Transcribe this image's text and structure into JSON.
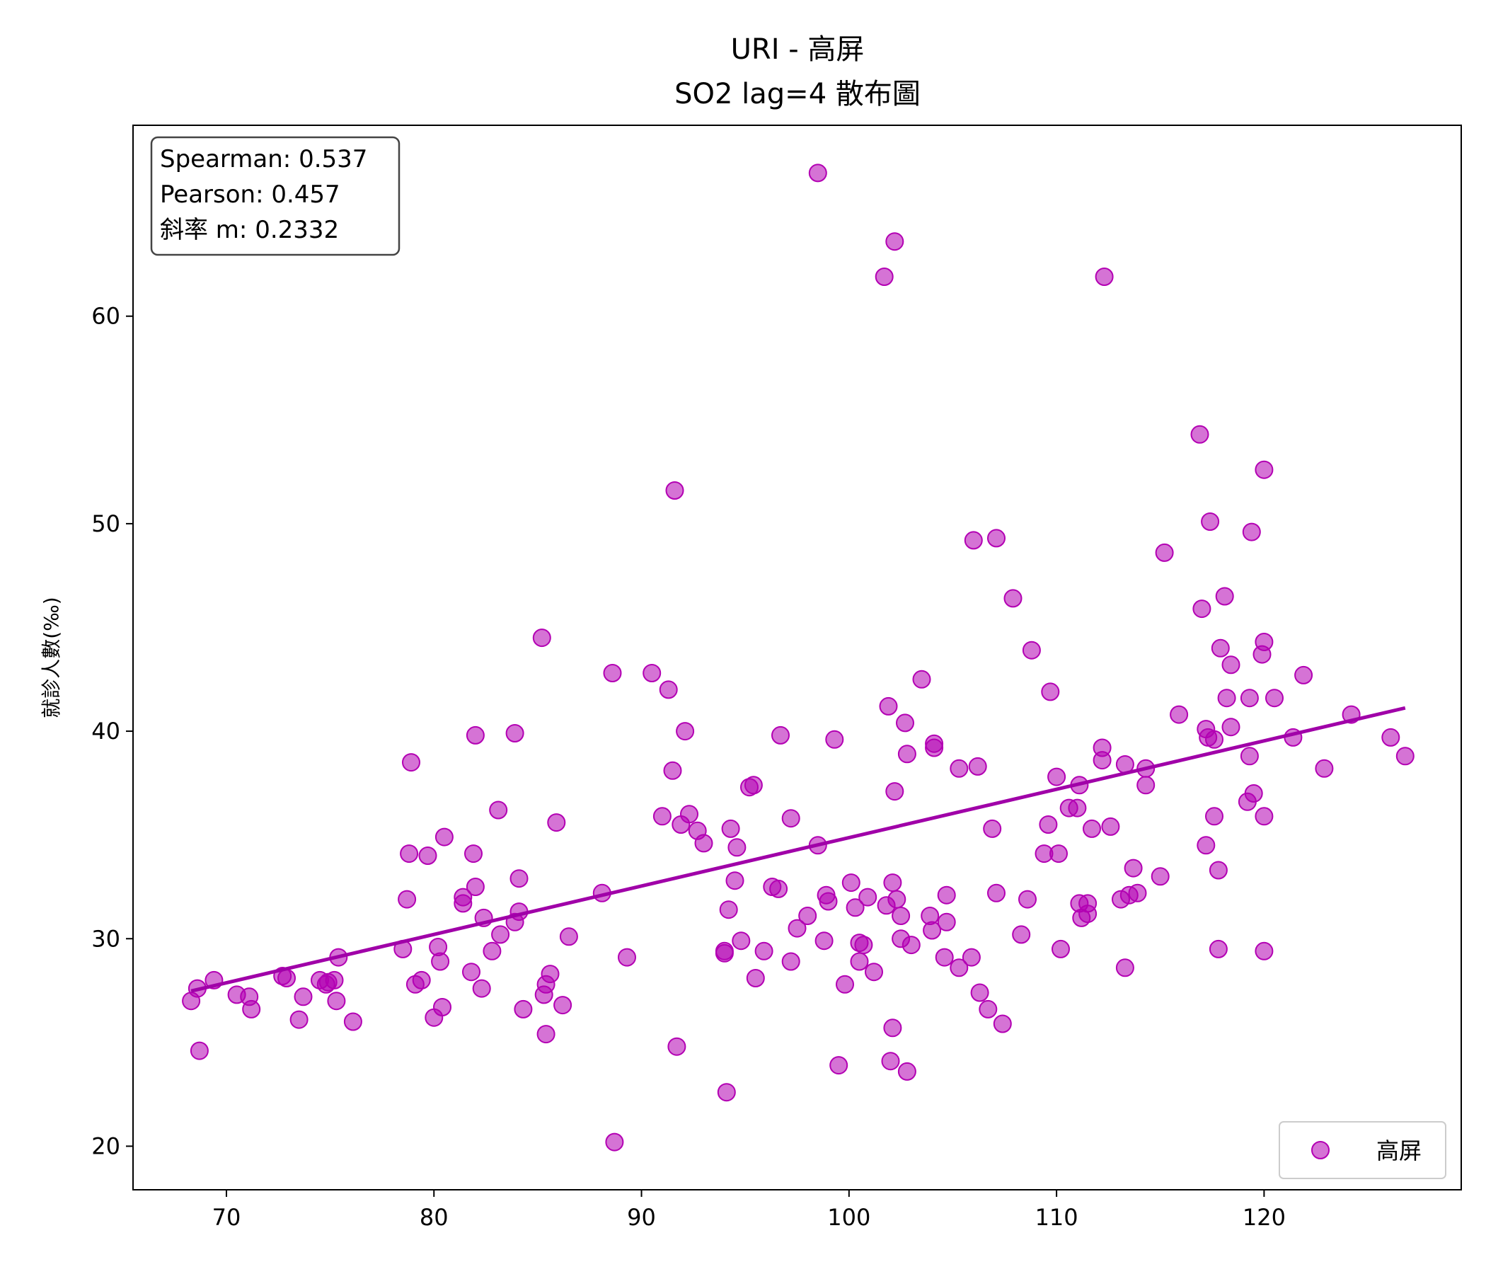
{
  "chart_data": {
    "type": "scatter",
    "title_lines": [
      "URI - 高屏",
      "SO2 lag=4 散布圖"
    ],
    "xlabel": "",
    "ylabel": "就診人數(‰)",
    "xlim": [
      65.5,
      129.5
    ],
    "ylim": [
      17.9,
      69.2
    ],
    "xticks": [
      70,
      80,
      90,
      100,
      110,
      120
    ],
    "yticks": [
      20,
      30,
      40,
      50,
      60
    ],
    "grid": false,
    "legend": {
      "position": "bottom-right",
      "entries": [
        "高屏"
      ]
    },
    "stats": [
      "Spearman: 0.537",
      "Pearson: 0.457",
      "斜率 m: 0.2332"
    ],
    "point_color": "#b300b3",
    "line_color": "#a000a8",
    "series": [
      {
        "name": "高屏",
        "points": [
          [
            68.3,
            27.0
          ],
          [
            68.6,
            27.6
          ],
          [
            68.7,
            24.6
          ],
          [
            69.4,
            28.0
          ],
          [
            70.5,
            27.3
          ],
          [
            71.1,
            27.2
          ],
          [
            71.2,
            26.6
          ],
          [
            72.7,
            28.2
          ],
          [
            72.9,
            28.1
          ],
          [
            73.5,
            26.1
          ],
          [
            73.7,
            27.2
          ],
          [
            74.5,
            28.0
          ],
          [
            74.8,
            27.8
          ],
          [
            74.9,
            27.9
          ],
          [
            75.2,
            28.0
          ],
          [
            75.3,
            27.0
          ],
          [
            75.4,
            29.1
          ],
          [
            76.1,
            26.0
          ],
          [
            78.5,
            29.5
          ],
          [
            78.7,
            31.9
          ],
          [
            78.8,
            34.1
          ],
          [
            78.9,
            38.5
          ],
          [
            79.1,
            27.8
          ],
          [
            79.4,
            28.0
          ],
          [
            79.7,
            34.0
          ],
          [
            80.0,
            26.2
          ],
          [
            80.2,
            29.6
          ],
          [
            80.3,
            28.9
          ],
          [
            80.4,
            26.7
          ],
          [
            80.5,
            34.9
          ],
          [
            81.4,
            31.7
          ],
          [
            81.4,
            32.0
          ],
          [
            81.8,
            28.4
          ],
          [
            81.9,
            34.1
          ],
          [
            82.0,
            32.5
          ],
          [
            82.0,
            39.8
          ],
          [
            82.3,
            27.6
          ],
          [
            82.4,
            31.0
          ],
          [
            82.8,
            29.4
          ],
          [
            83.1,
            36.2
          ],
          [
            83.2,
            30.2
          ],
          [
            83.9,
            39.9
          ],
          [
            83.9,
            30.8
          ],
          [
            84.1,
            31.3
          ],
          [
            84.1,
            32.9
          ],
          [
            84.3,
            26.6
          ],
          [
            85.2,
            44.5
          ],
          [
            85.3,
            27.3
          ],
          [
            85.4,
            25.4
          ],
          [
            85.4,
            27.8
          ],
          [
            85.6,
            28.3
          ],
          [
            85.9,
            35.6
          ],
          [
            86.2,
            26.8
          ],
          [
            86.5,
            30.1
          ],
          [
            88.1,
            32.2
          ],
          [
            88.6,
            42.8
          ],
          [
            88.7,
            20.2
          ],
          [
            89.3,
            29.1
          ],
          [
            90.5,
            42.8
          ],
          [
            91.0,
            35.9
          ],
          [
            91.3,
            42.0
          ],
          [
            91.5,
            38.1
          ],
          [
            91.6,
            51.6
          ],
          [
            91.7,
            24.8
          ],
          [
            91.9,
            35.5
          ],
          [
            92.1,
            40.0
          ],
          [
            92.3,
            36.0
          ],
          [
            92.7,
            35.2
          ],
          [
            93.0,
            34.6
          ],
          [
            94.0,
            29.4
          ],
          [
            94.0,
            29.3
          ],
          [
            94.1,
            22.6
          ],
          [
            94.2,
            31.4
          ],
          [
            94.3,
            35.3
          ],
          [
            94.5,
            32.8
          ],
          [
            94.6,
            34.4
          ],
          [
            94.8,
            29.9
          ],
          [
            95.2,
            37.3
          ],
          [
            95.4,
            37.4
          ],
          [
            95.5,
            28.1
          ],
          [
            95.9,
            29.4
          ],
          [
            96.3,
            32.5
          ],
          [
            96.6,
            32.4
          ],
          [
            96.7,
            39.8
          ],
          [
            97.2,
            35.8
          ],
          [
            97.2,
            28.9
          ],
          [
            97.5,
            30.5
          ],
          [
            98.0,
            31.1
          ],
          [
            98.5,
            34.5
          ],
          [
            98.5,
            66.9
          ],
          [
            98.8,
            29.9
          ],
          [
            98.9,
            32.1
          ],
          [
            99.0,
            31.8
          ],
          [
            99.3,
            39.6
          ],
          [
            99.5,
            23.9
          ],
          [
            99.8,
            27.8
          ],
          [
            100.1,
            32.7
          ],
          [
            100.3,
            31.5
          ],
          [
            100.5,
            29.8
          ],
          [
            100.5,
            28.9
          ],
          [
            100.7,
            29.7
          ],
          [
            100.9,
            32.0
          ],
          [
            101.2,
            28.4
          ],
          [
            101.7,
            61.9
          ],
          [
            101.8,
            31.6
          ],
          [
            101.9,
            41.2
          ],
          [
            102.0,
            24.1
          ],
          [
            102.1,
            32.7
          ],
          [
            102.1,
            25.7
          ],
          [
            102.2,
            37.1
          ],
          [
            102.2,
            63.6
          ],
          [
            102.3,
            31.9
          ],
          [
            102.5,
            31.1
          ],
          [
            102.5,
            30.0
          ],
          [
            102.7,
            40.4
          ],
          [
            102.8,
            23.6
          ],
          [
            102.8,
            38.9
          ],
          [
            103.0,
            29.7
          ],
          [
            103.5,
            42.5
          ],
          [
            103.9,
            31.1
          ],
          [
            104.0,
            30.4
          ],
          [
            104.1,
            39.2
          ],
          [
            104.1,
            39.4
          ],
          [
            104.6,
            29.1
          ],
          [
            104.7,
            32.1
          ],
          [
            104.7,
            30.8
          ],
          [
            105.3,
            28.6
          ],
          [
            105.3,
            38.2
          ],
          [
            105.9,
            29.1
          ],
          [
            106.0,
            49.2
          ],
          [
            106.2,
            38.3
          ],
          [
            106.3,
            27.4
          ],
          [
            106.7,
            26.6
          ],
          [
            106.9,
            35.3
          ],
          [
            107.1,
            49.3
          ],
          [
            107.1,
            32.2
          ],
          [
            107.4,
            25.9
          ],
          [
            107.9,
            46.4
          ],
          [
            108.3,
            30.2
          ],
          [
            108.6,
            31.9
          ],
          [
            108.8,
            43.9
          ],
          [
            109.4,
            34.1
          ],
          [
            109.6,
            35.5
          ],
          [
            109.7,
            41.9
          ],
          [
            110.0,
            37.8
          ],
          [
            110.1,
            34.1
          ],
          [
            110.2,
            29.5
          ],
          [
            110.6,
            36.3
          ],
          [
            111.0,
            36.3
          ],
          [
            111.1,
            31.7
          ],
          [
            111.1,
            37.4
          ],
          [
            111.2,
            31.0
          ],
          [
            111.5,
            31.7
          ],
          [
            111.5,
            31.2
          ],
          [
            111.7,
            35.3
          ],
          [
            112.2,
            39.2
          ],
          [
            112.2,
            38.6
          ],
          [
            112.3,
            61.9
          ],
          [
            112.6,
            35.4
          ],
          [
            113.1,
            31.9
          ],
          [
            113.3,
            38.4
          ],
          [
            113.3,
            28.6
          ],
          [
            113.5,
            32.1
          ],
          [
            113.7,
            33.4
          ],
          [
            113.9,
            32.2
          ],
          [
            114.3,
            38.2
          ],
          [
            114.3,
            37.4
          ],
          [
            115.0,
            33.0
          ],
          [
            115.2,
            48.6
          ],
          [
            115.9,
            40.8
          ],
          [
            116.9,
            54.3
          ],
          [
            117.0,
            45.9
          ],
          [
            117.2,
            40.1
          ],
          [
            117.2,
            34.5
          ],
          [
            117.3,
            39.7
          ],
          [
            117.4,
            50.1
          ],
          [
            117.6,
            39.6
          ],
          [
            117.6,
            35.9
          ],
          [
            117.8,
            33.3
          ],
          [
            117.8,
            29.5
          ],
          [
            117.9,
            44.0
          ],
          [
            118.1,
            46.5
          ],
          [
            118.2,
            41.6
          ],
          [
            118.4,
            43.2
          ],
          [
            118.4,
            40.2
          ],
          [
            119.2,
            36.6
          ],
          [
            119.3,
            41.6
          ],
          [
            119.3,
            38.8
          ],
          [
            119.4,
            49.6
          ],
          [
            119.5,
            37.0
          ],
          [
            119.9,
            43.7
          ],
          [
            120.0,
            44.3
          ],
          [
            120.0,
            52.6
          ],
          [
            120.0,
            35.9
          ],
          [
            120.0,
            29.4
          ],
          [
            120.5,
            41.6
          ],
          [
            121.4,
            39.7
          ],
          [
            121.9,
            42.7
          ],
          [
            122.9,
            38.2
          ],
          [
            124.2,
            40.8
          ],
          [
            126.1,
            39.7
          ],
          [
            126.8,
            38.8
          ]
        ]
      }
    ],
    "fit_line": {
      "slope": 0.2332,
      "intercept": 11.55,
      "x_range": [
        68.3,
        126.8
      ]
    }
  }
}
